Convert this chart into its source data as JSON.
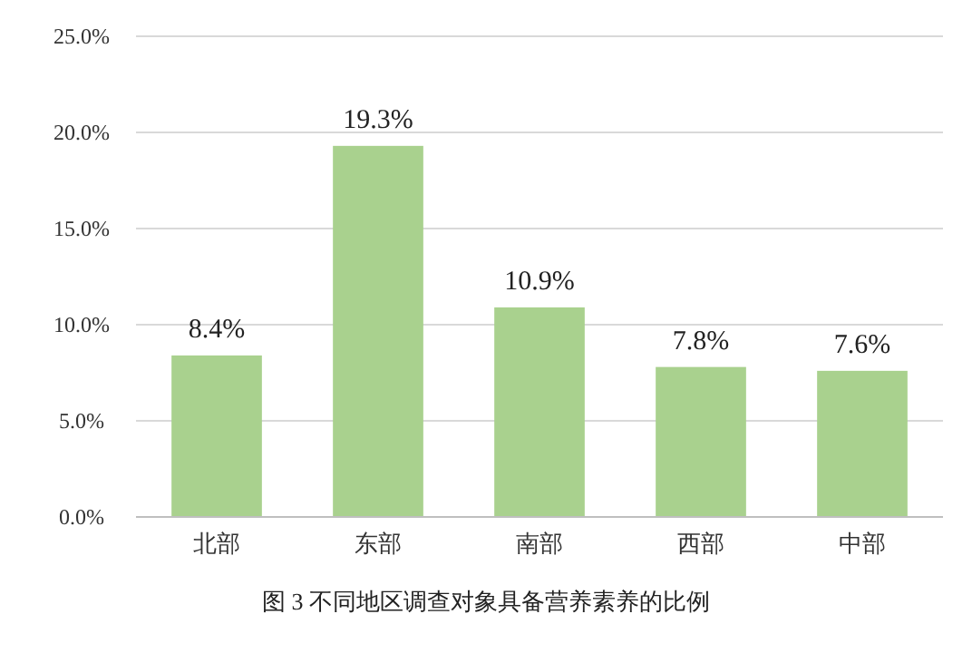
{
  "chart_data": {
    "type": "bar",
    "title": "图 3  不同地区调查对象具备营养素养的比例",
    "categories": [
      "北部",
      "东部",
      "南部",
      "西部",
      "中部"
    ],
    "values": [
      8.4,
      19.3,
      10.9,
      7.8,
      7.6
    ],
    "value_labels": [
      "8.4%",
      "19.3%",
      "10.9%",
      "7.8%",
      "7.6%"
    ],
    "color": "#a9d18e",
    "ylim": [
      0,
      25
    ],
    "yticks": [
      {
        "value": 0,
        "label": "0.0%"
      },
      {
        "value": 5,
        "label": "5.0%"
      },
      {
        "value": 10,
        "label": "10.0%"
      },
      {
        "value": 15,
        "label": "15.0%"
      },
      {
        "value": 20,
        "label": "20.0%"
      },
      {
        "value": 25,
        "label": "25.0%"
      }
    ],
    "grid": "y"
  }
}
